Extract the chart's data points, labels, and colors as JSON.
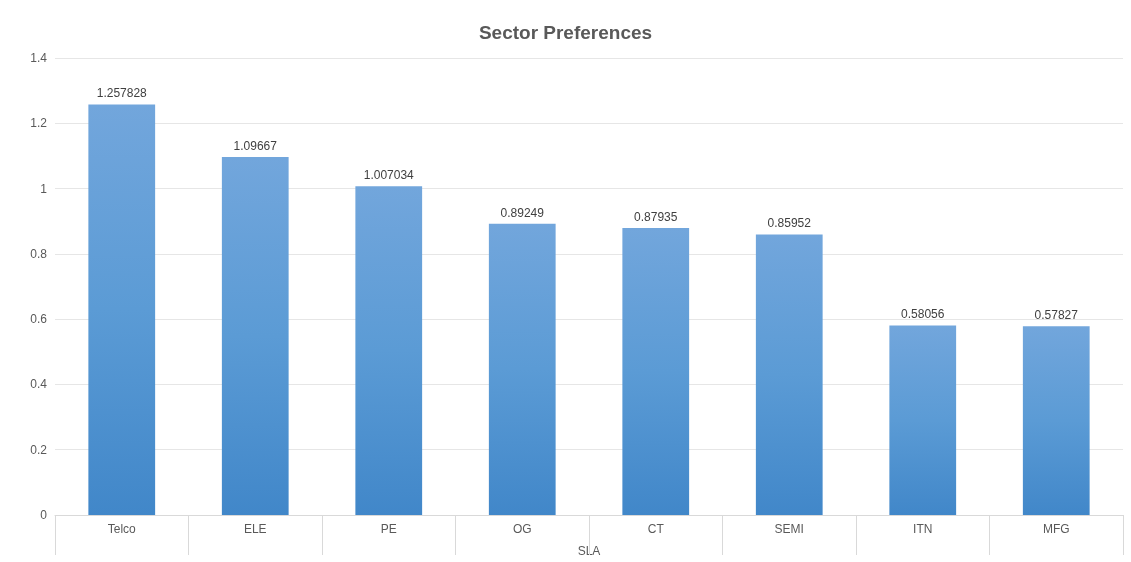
{
  "chart_data": {
    "type": "bar",
    "title": "Sector Preferences",
    "xlabel": "SLA",
    "categories": [
      "Telco",
      "ELE",
      "PE",
      "OG",
      "CT",
      "SEMI",
      "ITN",
      "MFG"
    ],
    "values": [
      1.257828,
      1.09667,
      1.007034,
      0.89249,
      0.87935,
      0.85952,
      0.58056,
      0.57827
    ],
    "color": "#5b9bd5",
    "ylim": [
      0,
      1.4
    ],
    "yticks": [
      0,
      0.2,
      0.4,
      0.6,
      0.8,
      1,
      1.2,
      1.4
    ],
    "grid": "y",
    "data_labels": true
  }
}
